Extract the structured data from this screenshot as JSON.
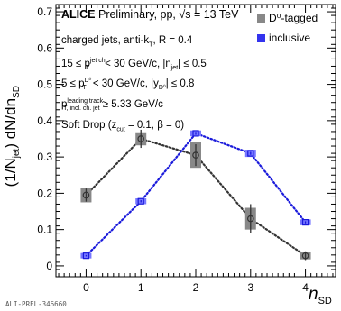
{
  "chart_data": {
    "type": "scatter",
    "xlabel": "n",
    "xlabel_sub": "SD",
    "ylabel": "(1/N",
    "ylabel_sub": "jet",
    "ylabel_tail": ") dN/dn",
    "ylabel_tail_sub": "SD",
    "xlim": [
      -0.55,
      4.55
    ],
    "ylim": [
      -0.03,
      0.72
    ],
    "x_ticks": [
      0,
      1,
      2,
      3,
      4
    ],
    "y_ticks": [
      0,
      0.1,
      0.2,
      0.3,
      0.4,
      0.5,
      0.6,
      0.7
    ],
    "x_tick_labels": [
      "0",
      "1",
      "2",
      "3",
      "4"
    ],
    "y_tick_labels": [
      "0",
      "0.1",
      "0.2",
      "0.3",
      "0.4",
      "0.5",
      "0.6",
      "0.7"
    ],
    "series": [
      {
        "name": "D⁰-tagged",
        "color": "#333333",
        "box_color": "#888888",
        "marker": "open-circle",
        "line_style": "dotted",
        "x": [
          0,
          1,
          2,
          3,
          4
        ],
        "y": [
          0.195,
          0.35,
          0.305,
          0.13,
          0.028
        ],
        "stat_err": [
          0.018,
          0.025,
          0.03,
          0.04,
          0.012
        ],
        "sys_err": [
          0.02,
          0.018,
          0.035,
          0.03,
          0.01
        ]
      },
      {
        "name": "inclusive",
        "color": "#1a1adb",
        "box_color": "#7777ff",
        "marker": "open-square",
        "line_style": "dotted",
        "x": [
          0,
          1,
          2,
          3,
          4
        ],
        "y": [
          0.028,
          0.178,
          0.365,
          0.31,
          0.12
        ],
        "stat_err": [
          0.002,
          0.003,
          0.004,
          0.004,
          0.003
        ],
        "sys_err": [
          0.003,
          0.008,
          0.008,
          0.01,
          0.008
        ]
      }
    ],
    "legend_position": "top-right",
    "grid": false
  },
  "annotations": {
    "line1_bold": "ALICE",
    "line1_rest": "Preliminary, pp, √s = 13 TeV",
    "line2": "charged jets, anti-k",
    "line2_sub": "T",
    "line2_tail": ", R = 0.4",
    "line3": "15 ≤ p",
    "line3_sup": "jet ch",
    "line3_sub": "T",
    "line3_tail": "< 30 GeV/c, |η",
    "line3_sub2": "jet",
    "line3_end": "| ≤ 0.5",
    "line4": "5 ≤ p",
    "line4_sup": "D⁰",
    "line4_sub": "T",
    "line4_tail": "< 30 GeV/c, |y",
    "line4_sub2": "D⁰",
    "line4_end": "| ≤ 0.8",
    "line5": "p",
    "line5_sup": "leading track",
    "line5_sub": "T, incl. ch. jet",
    "line5_tail": "≥ 5.33 GeV/c",
    "line6": "Soft Drop (z",
    "line6_sub": "cut",
    "line6_tail": "= 0.1, β = 0)"
  },
  "footer": {
    "id": "ALI-PREL-346660"
  }
}
